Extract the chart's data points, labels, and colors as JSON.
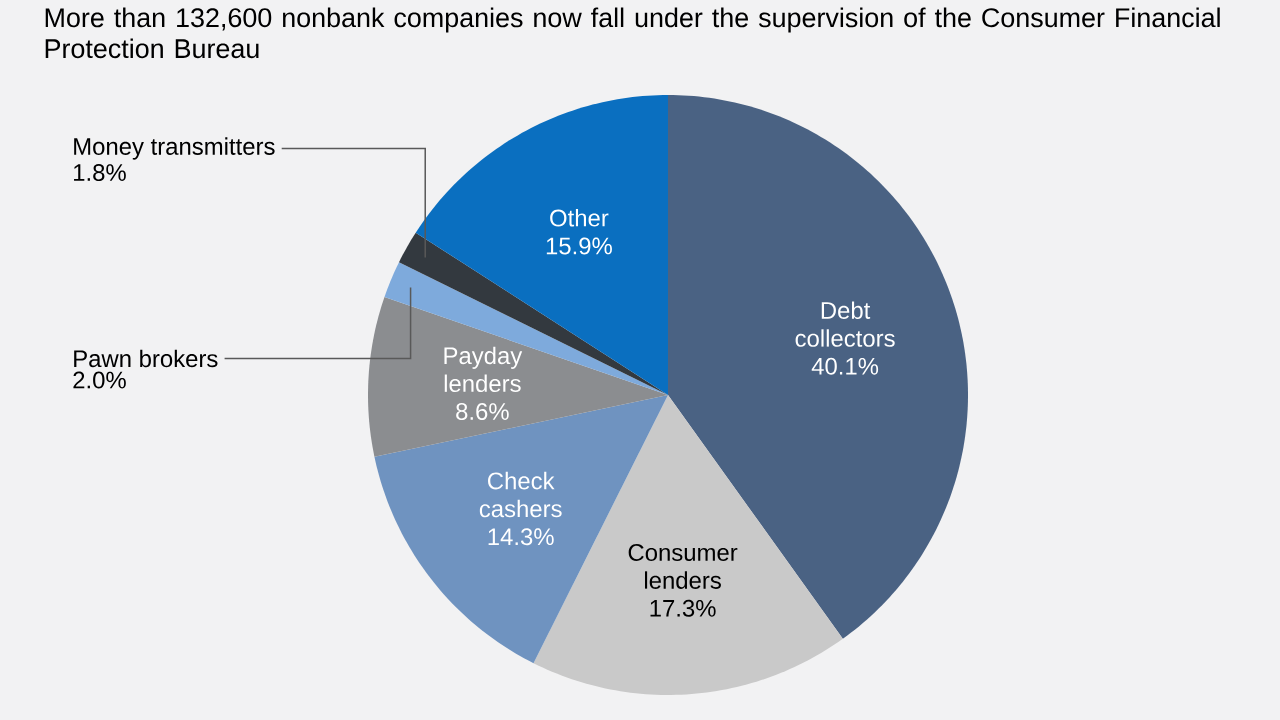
{
  "chart_data": {
    "type": "pie",
    "title": "More than 132,600 nonbank companies now fall under the supervision of the Consumer Financial Protection Bureau",
    "categories": [
      "Debt collectors",
      "Consumer lenders",
      "Check cashers",
      "Payday lenders",
      "Pawn brokers",
      "Money transmitters",
      "Other"
    ],
    "values": [
      40.1,
      17.3,
      14.3,
      8.6,
      2.0,
      1.8,
      15.9
    ],
    "colors": [
      "#4a6283",
      "#c9c9c9",
      "#6f93c0",
      "#8b8d90",
      "#7eaadc",
      "#33393f",
      "#0a6fc0"
    ],
    "value_labels": [
      "40.1%",
      "17.3%",
      "14.3%",
      "8.6%",
      "2.0%",
      "1.8%",
      "15.9%"
    ]
  }
}
